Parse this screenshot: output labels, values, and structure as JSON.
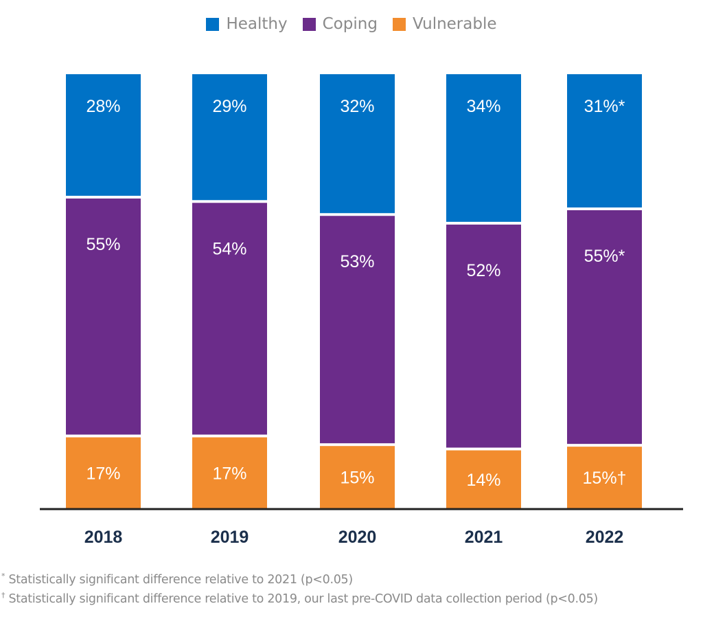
{
  "chart_data": {
    "type": "bar",
    "stacked": true,
    "orientation": "vertical",
    "categories": [
      "2018",
      "2019",
      "2020",
      "2021",
      "2022"
    ],
    "series": [
      {
        "name": "Healthy",
        "color": "#0072c6",
        "values": [
          28,
          29,
          32,
          34,
          31
        ],
        "labels": [
          "28%",
          "29%",
          "32%",
          "34%",
          "31%*"
        ]
      },
      {
        "name": "Coping",
        "color": "#6b2c8a",
        "values": [
          55,
          54,
          53,
          52,
          55
        ],
        "labels": [
          "55%",
          "54%",
          "53%",
          "52%",
          "55%*"
        ]
      },
      {
        "name": "Vulnerable",
        "color": "#f28c2e",
        "values": [
          17,
          17,
          15,
          14,
          15
        ],
        "labels": [
          "17%",
          "17%",
          "15%",
          "14%",
          "15%†"
        ]
      }
    ],
    "legend_position": "top",
    "grid": false,
    "ylim": [
      0,
      100
    ]
  },
  "footnotes": [
    {
      "mark": "*",
      "text": "Statistically significant difference relative to 2021 (p<0.05)"
    },
    {
      "mark": "†",
      "text": "Statistically significant difference relative to 2019, our last pre-COVID data collection period (p<0.05)"
    }
  ]
}
